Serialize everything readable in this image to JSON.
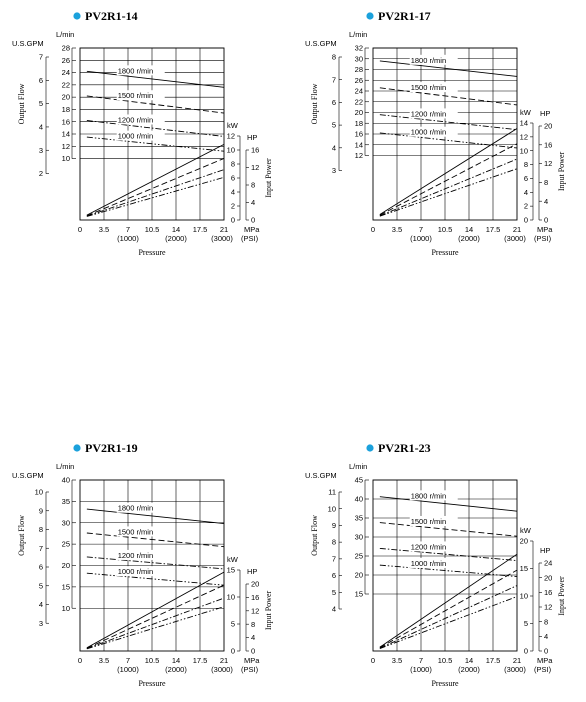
{
  "chart_data": [
    {
      "type": "line",
      "title": "PV2R1-14",
      "flow_axis": {
        "label": "L/min",
        "ticks": [
          10,
          12,
          14,
          16,
          18,
          20,
          22,
          24,
          26,
          28
        ],
        "ylim": [
          0,
          28
        ]
      },
      "gpm_axis": {
        "label": "U.S.GPM",
        "ticks": [
          2,
          3,
          4,
          5,
          6,
          7
        ]
      },
      "kw_axis": {
        "label": "kW",
        "ticks": [
          0,
          2,
          4,
          6,
          8,
          10,
          12
        ]
      },
      "hp_axis": {
        "label": "HP",
        "ticks": [
          0,
          4,
          8,
          12,
          16
        ]
      },
      "x_axis": {
        "label": "Pressure",
        "unit": "MPa",
        "ticks": [
          0,
          3.5,
          7,
          10.5,
          14,
          17.5,
          21
        ],
        "psi_labels": [
          "(1000)",
          "(2000)",
          "(3000)"
        ],
        "psi_unit": "(PSI)",
        "xlim": [
          0,
          21
        ]
      },
      "ylabel_left": "Output Flow",
      "ylabel_right": "Input Power",
      "flow_series": [
        {
          "name": "1800 r/min",
          "style": "solid",
          "x": [
            1,
            21
          ],
          "y": [
            24.2,
            21.6
          ]
        },
        {
          "name": "1500 r/min",
          "style": "dash",
          "x": [
            1,
            21
          ],
          "y": [
            20.2,
            17.4
          ]
        },
        {
          "name": "1200 r/min",
          "style": "dashdot",
          "x": [
            1,
            21
          ],
          "y": [
            16.2,
            13.6
          ]
        },
        {
          "name": "1000 r/min",
          "style": "dashdotdot",
          "x": [
            1,
            21
          ],
          "y": [
            13.5,
            11.2
          ]
        }
      ],
      "power_series": [
        {
          "style": "solid",
          "x": [
            1,
            21
          ],
          "y_kw": [
            0.7,
            10.8
          ]
        },
        {
          "style": "dash",
          "x": [
            1,
            21
          ],
          "y_kw": [
            0.6,
            8.8
          ]
        },
        {
          "style": "dashdot",
          "x": [
            1,
            21
          ],
          "y_kw": [
            0.55,
            7.2
          ]
        },
        {
          "style": "dashdotdot",
          "x": [
            1,
            21
          ],
          "y_kw": [
            0.5,
            6.1
          ]
        }
      ]
    },
    {
      "type": "line",
      "title": "PV2R1-17",
      "flow_axis": {
        "label": "L/min",
        "ticks": [
          12,
          14,
          16,
          18,
          20,
          22,
          24,
          26,
          28,
          30,
          32
        ],
        "ylim": [
          0,
          32
        ]
      },
      "gpm_axis": {
        "label": "U.S.GPM",
        "ticks": [
          3,
          4,
          5,
          6,
          7,
          8
        ]
      },
      "kw_axis": {
        "label": "kW",
        "ticks": [
          0,
          2,
          4,
          6,
          8,
          10,
          12,
          14
        ]
      },
      "hp_axis": {
        "label": "HP",
        "ticks": [
          0,
          4,
          8,
          12,
          16,
          20
        ]
      },
      "x_axis": {
        "label": "Pressure",
        "unit": "MPa",
        "ticks": [
          0,
          3.5,
          7,
          10.5,
          14,
          17.5,
          21
        ],
        "psi_labels": [
          "(1000)",
          "(2000)",
          "(3000)"
        ],
        "psi_unit": "(PSI)",
        "xlim": [
          0,
          21
        ]
      },
      "ylabel_left": "Output Flow",
      "ylabel_right": "Input Power",
      "flow_series": [
        {
          "name": "1800 r/min",
          "style": "solid",
          "x": [
            1,
            21
          ],
          "y": [
            29.6,
            26.7
          ]
        },
        {
          "name": "1500 r/min",
          "style": "dash",
          "x": [
            1,
            21
          ],
          "y": [
            24.6,
            21.4
          ]
        },
        {
          "name": "1200 r/min",
          "style": "dashdot",
          "x": [
            1,
            21
          ],
          "y": [
            19.6,
            16.8
          ]
        },
        {
          "name": "1000 r/min",
          "style": "dashdotdot",
          "x": [
            1,
            21
          ],
          "y": [
            16.2,
            13.4
          ]
        }
      ],
      "power_series": [
        {
          "style": "solid",
          "x": [
            1,
            21
          ],
          "y_kw": [
            0.8,
            13.2
          ]
        },
        {
          "style": "dash",
          "x": [
            1,
            21
          ],
          "y_kw": [
            0.7,
            11.0
          ]
        },
        {
          "style": "dashdot",
          "x": [
            1,
            21
          ],
          "y_kw": [
            0.6,
            8.8
          ]
        },
        {
          "style": "dashdotdot",
          "x": [
            1,
            21
          ],
          "y_kw": [
            0.55,
            7.4
          ]
        }
      ]
    },
    {
      "type": "line",
      "title": "PV2R1-19",
      "flow_axis": {
        "label": "L/min",
        "ticks": [
          10,
          15,
          20,
          25,
          30,
          35,
          40
        ],
        "ylim": [
          0,
          40
        ]
      },
      "gpm_axis": {
        "label": "U.S.GPM",
        "ticks": [
          3,
          4,
          5,
          6,
          7,
          8,
          9,
          10
        ]
      },
      "kw_axis": {
        "label": "kW",
        "ticks": [
          0,
          5,
          10,
          15
        ]
      },
      "hp_axis": {
        "label": "HP",
        "ticks": [
          0,
          4,
          8,
          12,
          16,
          20
        ]
      },
      "x_axis": {
        "label": "Pressure",
        "unit": "MPa",
        "ticks": [
          0,
          3.5,
          7,
          10.5,
          14,
          17.5,
          21
        ],
        "psi_labels": [
          "(1000)",
          "(2000)",
          "(3000)"
        ],
        "psi_unit": "(PSI)",
        "xlim": [
          0,
          21
        ]
      },
      "ylabel_left": "Output Flow",
      "ylabel_right": "Input Power",
      "flow_series": [
        {
          "name": "1800 r/min",
          "style": "solid",
          "x": [
            1,
            21
          ],
          "y": [
            33.2,
            29.8
          ]
        },
        {
          "name": "1500 r/min",
          "style": "dash",
          "x": [
            1,
            21
          ],
          "y": [
            27.6,
            24.4
          ]
        },
        {
          "name": "1200 r/min",
          "style": "dashdot",
          "x": [
            1,
            21
          ],
          "y": [
            22.0,
            19.2
          ]
        },
        {
          "name": "1000 r/min",
          "style": "dashdotdot",
          "x": [
            1,
            21
          ],
          "y": [
            18.2,
            15.4
          ]
        }
      ],
      "power_series": [
        {
          "style": "solid",
          "x": [
            1,
            21
          ],
          "y_kw": [
            0.6,
            14.6
          ]
        },
        {
          "style": "dash",
          "x": [
            1,
            21
          ],
          "y_kw": [
            0.5,
            12.2
          ]
        },
        {
          "style": "dashdot",
          "x": [
            1,
            21
          ],
          "y_kw": [
            0.45,
            9.8
          ]
        },
        {
          "style": "dashdotdot",
          "x": [
            1,
            21
          ],
          "y_kw": [
            0.4,
            8.2
          ]
        }
      ]
    },
    {
      "type": "line",
      "title": "PV2R1-23",
      "flow_axis": {
        "label": "L/min",
        "ticks": [
          15,
          20,
          25,
          30,
          35,
          40,
          45
        ],
        "ylim": [
          0,
          45
        ]
      },
      "gpm_axis": {
        "label": "U.S.GPM",
        "ticks": [
          4,
          5,
          6,
          7,
          8,
          9,
          10,
          11
        ]
      },
      "kw_axis": {
        "label": "kW",
        "ticks": [
          0,
          5,
          10,
          15,
          20
        ]
      },
      "hp_axis": {
        "label": "HP",
        "ticks": [
          0,
          4,
          8,
          12,
          16,
          20,
          24
        ]
      },
      "x_axis": {
        "label": "Pressure",
        "unit": "MPa",
        "ticks": [
          0,
          3.5,
          7,
          10.5,
          14,
          17.5,
          21
        ],
        "psi_labels": [
          "(1000)",
          "(2000)",
          "(3000)"
        ],
        "psi_unit": "(PSI)",
        "xlim": [
          0,
          21
        ]
      },
      "ylabel_left": "Output Flow",
      "ylabel_right": "Input Power",
      "flow_series": [
        {
          "name": "1800 r/min",
          "style": "solid",
          "x": [
            1,
            21
          ],
          "y": [
            40.6,
            36.8
          ]
        },
        {
          "name": "1500 r/min",
          "style": "dash",
          "x": [
            1,
            21
          ],
          "y": [
            33.8,
            30.2
          ]
        },
        {
          "name": "1200 r/min",
          "style": "dashdot",
          "x": [
            1,
            21
          ],
          "y": [
            27.0,
            23.8
          ]
        },
        {
          "name": "1000 r/min",
          "style": "dashdotdot",
          "x": [
            1,
            21
          ],
          "y": [
            22.6,
            19.6
          ]
        }
      ],
      "power_series": [
        {
          "style": "solid",
          "x": [
            1,
            21
          ],
          "y_kw": [
            0.7,
            17.6
          ]
        },
        {
          "style": "dash",
          "x": [
            1,
            21
          ],
          "y_kw": [
            0.6,
            14.7
          ]
        },
        {
          "style": "dashdot",
          "x": [
            1,
            21
          ],
          "y_kw": [
            0.5,
            11.9
          ]
        },
        {
          "style": "dashdotdot",
          "x": [
            1,
            21
          ],
          "y_kw": [
            0.45,
            9.9
          ]
        }
      ]
    }
  ],
  "colors": {
    "bullet": "#1ba1dc",
    "ink": "#000000"
  }
}
